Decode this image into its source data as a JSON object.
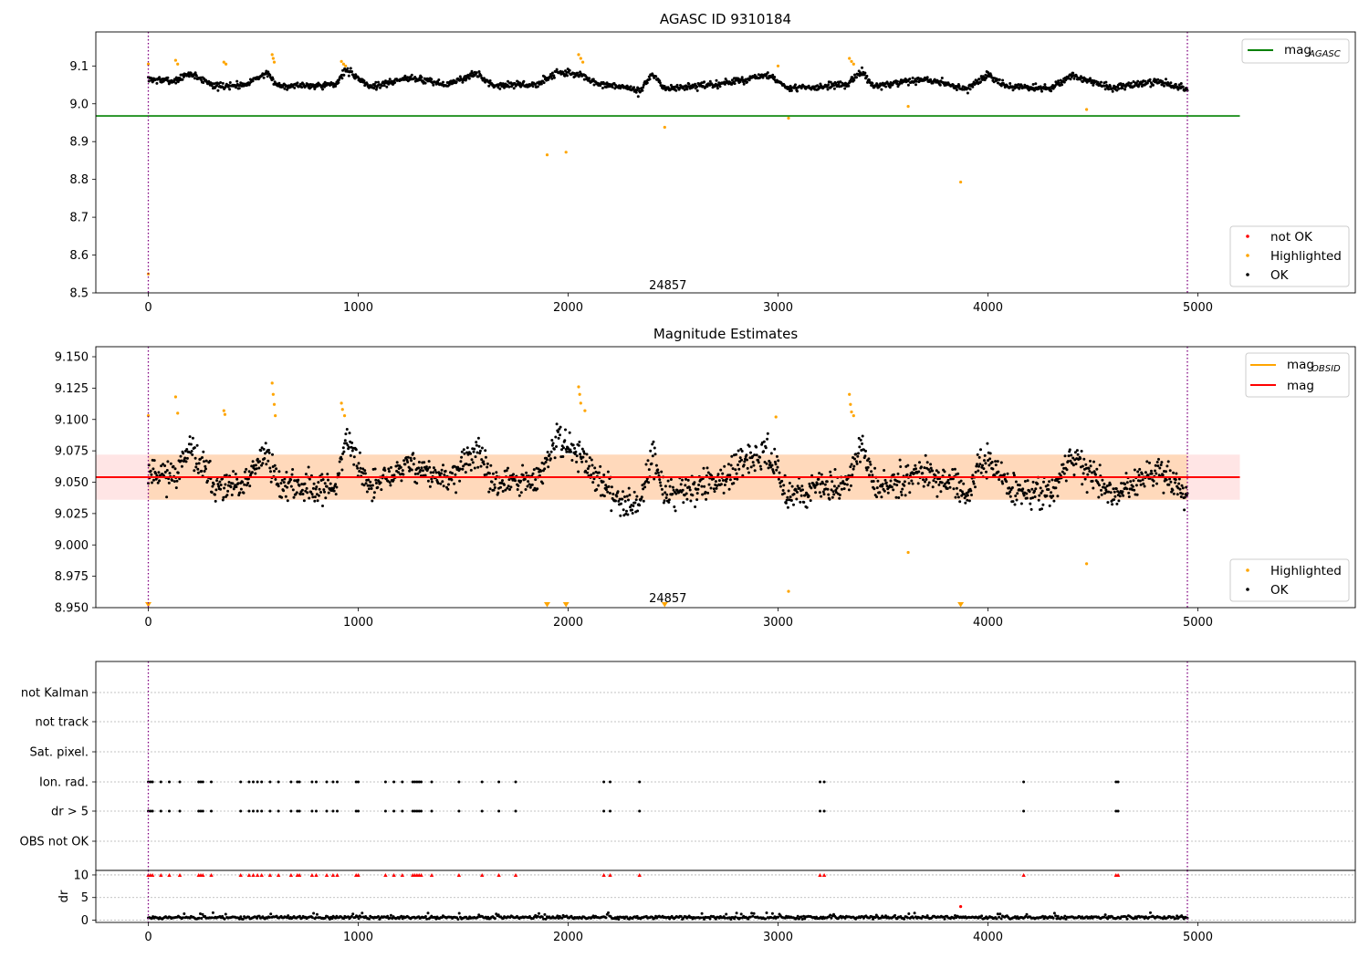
{
  "chart_data": [
    {
      "type": "scatter",
      "title": "AGASC ID 9310184",
      "xlim": [
        -250,
        5750
      ],
      "ylim": [
        8.5,
        9.19
      ],
      "xticks": [
        0,
        1000,
        2000,
        3000,
        4000,
        5000
      ],
      "yticks": [
        8.5,
        8.6,
        8.7,
        8.8,
        8.9,
        9.0,
        9.1
      ],
      "ytick_labels": [
        "8.5",
        "8.6",
        "8.7",
        "8.8",
        "8.9",
        "9.0",
        "9.1"
      ],
      "obs_boundaries": [
        0,
        4950
      ],
      "obsid_annotation": {
        "text": "24857",
        "x": 2475,
        "y": 8.515
      },
      "lines": [
        {
          "name": "mag",
          "subscript": "AGASC",
          "y": 8.968,
          "x": [
            -250,
            5200
          ],
          "color": "#008000"
        }
      ],
      "legends": [
        {
          "placement": "upper right",
          "entries": [
            {
              "label": "mag",
              "subscript": "AGASC",
              "kind": "line",
              "color": "#008000"
            }
          ]
        },
        {
          "placement": "lower right",
          "entries": [
            {
              "label": "not OK",
              "kind": "dot",
              "color": "#ff0000"
            },
            {
              "label": "Highlighted",
              "kind": "dot",
              "color": "#ffa500"
            },
            {
              "label": "OK",
              "kind": "dot",
              "color": "#000000"
            }
          ]
        }
      ],
      "ok_trace": {
        "x_range": [
          0,
          4950
        ],
        "color": "#000000",
        "segments": [
          [
            0,
            9.065
          ],
          [
            120,
            9.06
          ],
          [
            200,
            9.08
          ],
          [
            330,
            9.045
          ],
          [
            450,
            9.05
          ],
          [
            560,
            9.08
          ],
          [
            620,
            9.048
          ],
          [
            890,
            9.05
          ],
          [
            940,
            9.09
          ],
          [
            1060,
            9.045
          ],
          [
            1250,
            9.07
          ],
          [
            1420,
            9.05
          ],
          [
            1560,
            9.08
          ],
          [
            1640,
            9.05
          ],
          [
            1850,
            9.05
          ],
          [
            1950,
            9.085
          ],
          [
            2070,
            9.075
          ],
          [
            2140,
            9.05
          ],
          [
            2270,
            9.045
          ],
          [
            2340,
            9.03
          ],
          [
            2400,
            9.08
          ],
          [
            2460,
            9.04
          ],
          [
            2700,
            9.05
          ],
          [
            2950,
            9.075
          ],
          [
            3050,
            9.04
          ],
          [
            3330,
            9.05
          ],
          [
            3400,
            9.085
          ],
          [
            3460,
            9.045
          ],
          [
            3700,
            9.065
          ],
          [
            3900,
            9.04
          ],
          [
            4000,
            9.075
          ],
          [
            4100,
            9.045
          ],
          [
            4300,
            9.04
          ],
          [
            4400,
            9.075
          ],
          [
            4600,
            9.04
          ],
          [
            4800,
            9.06
          ],
          [
            4950,
            9.04
          ]
        ],
        "noise": 0.009
      },
      "highlighted": {
        "color": "#ffa500",
        "points": [
          [
            0,
            9.105
          ],
          [
            0,
            8.55
          ],
          [
            130,
            9.115
          ],
          [
            140,
            9.105
          ],
          [
            360,
            9.11
          ],
          [
            370,
            9.105
          ],
          [
            590,
            9.13
          ],
          [
            595,
            9.12
          ],
          [
            600,
            9.11
          ],
          [
            920,
            9.112
          ],
          [
            930,
            9.105
          ],
          [
            940,
            9.1
          ],
          [
            1900,
            8.865
          ],
          [
            1990,
            8.872
          ],
          [
            2050,
            9.13
          ],
          [
            2060,
            9.12
          ],
          [
            2070,
            9.11
          ],
          [
            2460,
            8.938
          ],
          [
            3050,
            8.962
          ],
          [
            3000,
            9.1
          ],
          [
            3340,
            9.12
          ],
          [
            3350,
            9.112
          ],
          [
            3360,
            9.105
          ],
          [
            3620,
            8.993
          ],
          [
            3870,
            8.793
          ],
          [
            4470,
            8.985
          ]
        ]
      }
    },
    {
      "type": "scatter",
      "title": "Magnitude Estimates",
      "xlim": [
        -250,
        5750
      ],
      "ylim": [
        8.95,
        9.158
      ],
      "xticks": [
        0,
        1000,
        2000,
        3000,
        4000,
        5000
      ],
      "yticks": [
        8.95,
        8.975,
        9.0,
        9.025,
        9.05,
        9.075,
        9.1,
        9.125,
        9.15
      ],
      "ytick_labels": [
        "8.950",
        "8.975",
        "9.000",
        "9.025",
        "9.050",
        "9.075",
        "9.100",
        "9.125",
        "9.150"
      ],
      "obs_boundaries": [
        0,
        4950
      ],
      "obsid_annotation": {
        "text": "24857",
        "x": 2475,
        "y": 8.956
      },
      "mag": 9.054,
      "band": {
        "y0": 9.036,
        "y1": 9.072,
        "x": [
          -250,
          5200
        ],
        "obs_x": [
          0,
          4950
        ]
      },
      "lines": [
        {
          "name": "mag",
          "subscript": "OBSID",
          "y": 9.054,
          "x": [
            0,
            4950
          ],
          "color": "#ffa500"
        },
        {
          "name": "mag",
          "y": 9.054,
          "x": [
            -250,
            5200
          ],
          "color": "#ff0000"
        }
      ],
      "legends": [
        {
          "placement": "upper right",
          "entries": [
            {
              "label": "mag",
              "subscript": "OBSID",
              "kind": "line",
              "color": "#ffa500"
            },
            {
              "label": "mag",
              "kind": "line",
              "color": "#ff0000"
            }
          ]
        },
        {
          "placement": "lower right",
          "entries": [
            {
              "label": "Highlighted",
              "kind": "dot",
              "color": "#ffa500"
            },
            {
              "label": "OK",
              "kind": "dot",
              "color": "#000000"
            }
          ]
        }
      ],
      "ok_trace": {
        "x_range": [
          0,
          4950
        ],
        "color": "#000000",
        "segments": [
          [
            0,
            9.06
          ],
          [
            120,
            9.055
          ],
          [
            200,
            9.075
          ],
          [
            330,
            9.045
          ],
          [
            450,
            9.045
          ],
          [
            560,
            9.075
          ],
          [
            620,
            9.048
          ],
          [
            890,
            9.045
          ],
          [
            940,
            9.085
          ],
          [
            1060,
            9.045
          ],
          [
            1250,
            9.065
          ],
          [
            1420,
            9.05
          ],
          [
            1560,
            9.075
          ],
          [
            1640,
            9.05
          ],
          [
            1850,
            9.05
          ],
          [
            1950,
            9.085
          ],
          [
            2070,
            9.07
          ],
          [
            2140,
            9.05
          ],
          [
            2270,
            9.035
          ],
          [
            2340,
            9.03
          ],
          [
            2400,
            9.075
          ],
          [
            2460,
            9.04
          ],
          [
            2700,
            9.05
          ],
          [
            2950,
            9.075
          ],
          [
            3050,
            9.04
          ],
          [
            3330,
            9.05
          ],
          [
            3400,
            9.08
          ],
          [
            3460,
            9.045
          ],
          [
            3700,
            9.06
          ],
          [
            3900,
            9.04
          ],
          [
            4000,
            9.07
          ],
          [
            4100,
            9.045
          ],
          [
            4300,
            9.04
          ],
          [
            4400,
            9.07
          ],
          [
            4600,
            9.04
          ],
          [
            4800,
            9.06
          ],
          [
            4950,
            9.04
          ]
        ],
        "noise": 0.012
      },
      "highlighted": {
        "color": "#ffa500",
        "points": [
          [
            0,
            9.103
          ],
          [
            130,
            9.118
          ],
          [
            140,
            9.105
          ],
          [
            360,
            9.107
          ],
          [
            365,
            9.104
          ],
          [
            590,
            9.129
          ],
          [
            595,
            9.12
          ],
          [
            600,
            9.112
          ],
          [
            605,
            9.103
          ],
          [
            920,
            9.113
          ],
          [
            925,
            9.108
          ],
          [
            935,
            9.103
          ],
          [
            2050,
            9.126
          ],
          [
            2055,
            9.12
          ],
          [
            2060,
            9.113
          ],
          [
            2080,
            9.107
          ],
          [
            2990,
            9.102
          ],
          [
            3340,
            9.12
          ],
          [
            3345,
            9.112
          ],
          [
            3350,
            9.106
          ],
          [
            3360,
            9.103
          ],
          [
            3050,
            8.963
          ],
          [
            3620,
            8.994
          ],
          [
            4470,
            8.985
          ]
        ]
      },
      "out_of_range_markers": {
        "color": "#ffa500",
        "x": [
          0,
          1900,
          1990,
          2460,
          3870
        ]
      }
    },
    {
      "type": "scatter",
      "title": "",
      "xlim": [
        -250,
        5750
      ],
      "xticks": [
        0,
        1000,
        2000,
        3000,
        4000,
        5000
      ],
      "obs_boundaries": [
        0,
        4950
      ],
      "flag_rows": [
        "not Kalman",
        "not track",
        "Sat. pixel.",
        "Ion. rad.",
        "dr > 5",
        "OBS not OK"
      ],
      "flag_events": {
        "Ion. rad.": [
          0,
          10,
          20,
          60,
          100,
          150,
          240,
          250,
          260,
          300,
          440,
          480,
          500,
          520,
          540,
          580,
          620,
          680,
          710,
          720,
          780,
          800,
          850,
          880,
          900,
          990,
          1000,
          1130,
          1170,
          1210,
          1260,
          1270,
          1280,
          1290,
          1300,
          1350,
          1480,
          1590,
          1670,
          1750,
          2170,
          2200,
          2340,
          3200,
          3220,
          4170,
          4610,
          4620
        ],
        "dr > 5": [
          0,
          10,
          20,
          60,
          100,
          150,
          240,
          250,
          260,
          300,
          440,
          480,
          500,
          520,
          540,
          580,
          620,
          680,
          710,
          720,
          780,
          800,
          850,
          880,
          900,
          990,
          1000,
          1130,
          1170,
          1210,
          1260,
          1270,
          1280,
          1290,
          1300,
          1350,
          1480,
          1590,
          1670,
          1750,
          2170,
          2200,
          2340,
          3200,
          3220,
          4170,
          4610,
          4620
        ]
      },
      "dr": {
        "ylabel": "dr",
        "ylim": [
          -0.5,
          11
        ],
        "yticks": [
          0,
          5,
          10
        ],
        "ytick_labels": [
          "0",
          "5",
          "10"
        ],
        "clip": 10,
        "typical": 0.6,
        "outlier": {
          "x": 3870,
          "y": 3
        }
      }
    }
  ]
}
